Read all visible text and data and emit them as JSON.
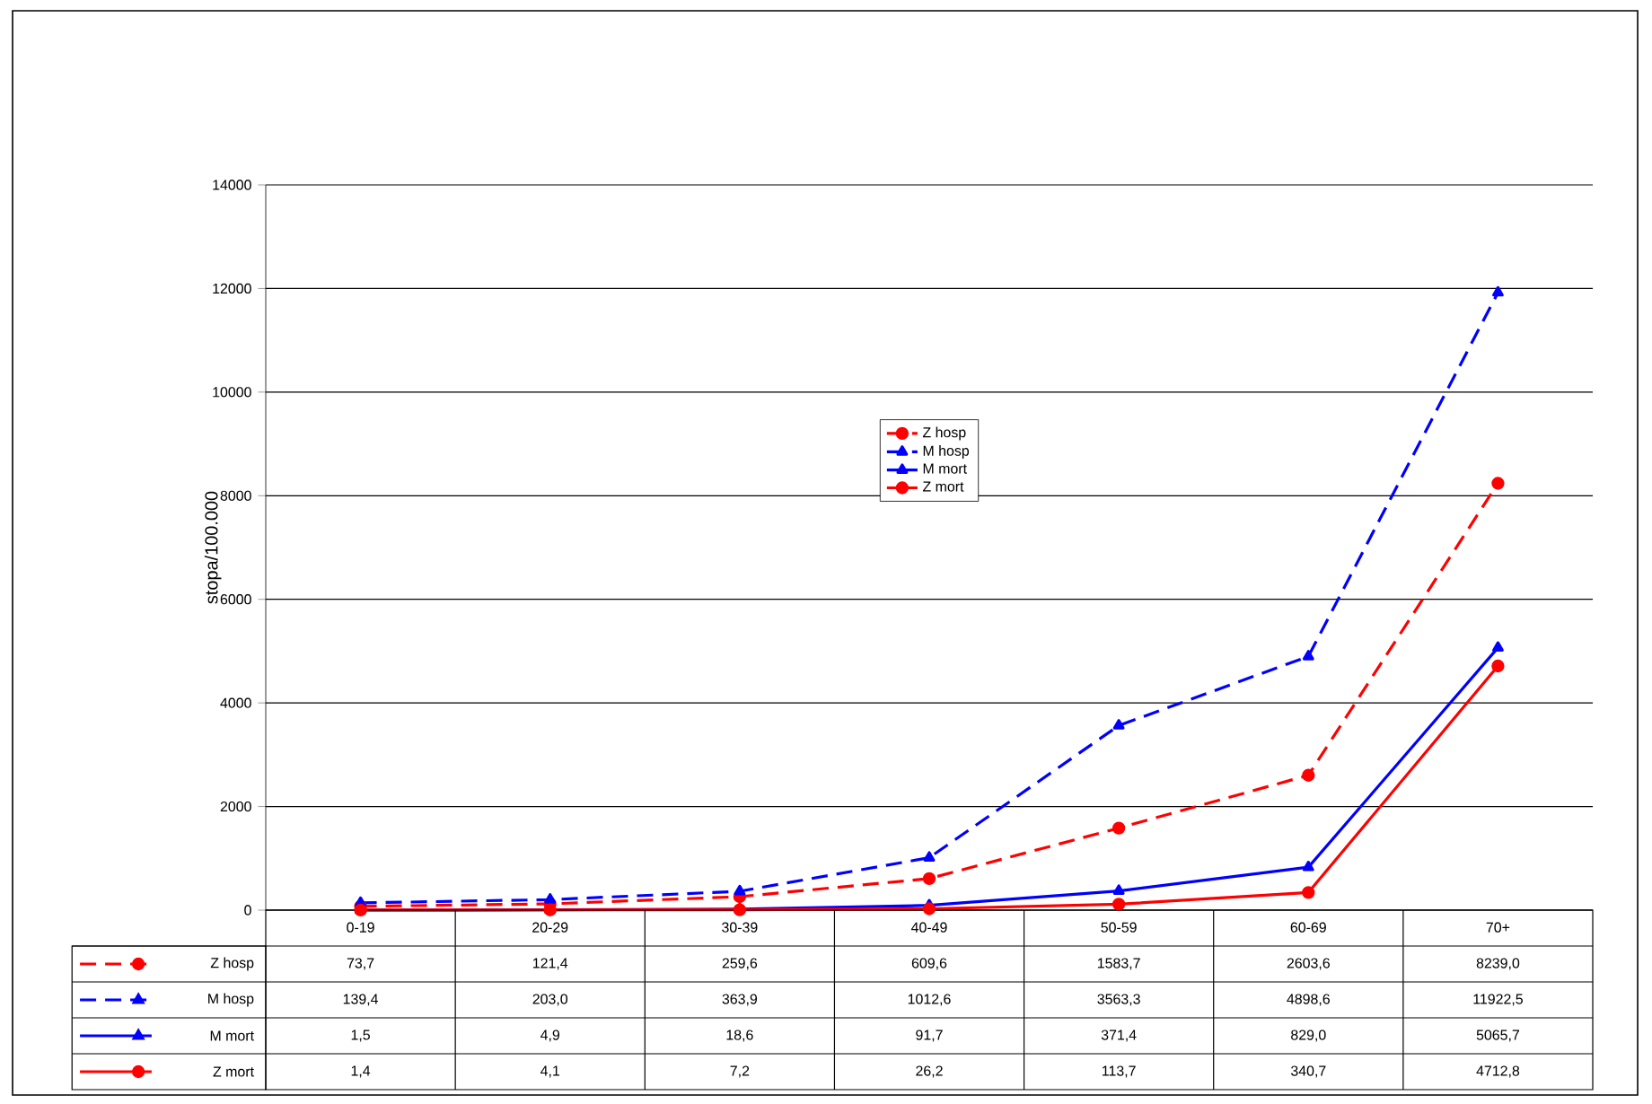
{
  "chart_data": {
    "type": "line",
    "ylabel": "stopa/100.000",
    "categories": [
      "0-19",
      "20-29",
      "30-39",
      "40-49",
      "50-59",
      "60-69",
      "70+"
    ],
    "series": [
      {
        "name": "Z hosp",
        "color": "#ff0000",
        "marker": "circle",
        "line_style": "dashed",
        "values": [
          73.7,
          121.4,
          259.6,
          609.6,
          1583.7,
          2603.6,
          8239.0
        ],
        "value_labels": [
          "73,7",
          "121,4",
          "259,6",
          "609,6",
          "1583,7",
          "2603,6",
          "8239,0"
        ]
      },
      {
        "name": "M hosp",
        "color": "#0000ff",
        "marker": "triangle",
        "line_style": "dashed",
        "values": [
          139.4,
          203.0,
          363.9,
          1012.6,
          3563.3,
          4898.6,
          11922.5
        ],
        "value_labels": [
          "139,4",
          "203,0",
          "363,9",
          "1012,6",
          "3563,3",
          "4898,6",
          "11922,5"
        ]
      },
      {
        "name": "M mort",
        "color": "#0000ff",
        "marker": "triangle",
        "line_style": "solid",
        "values": [
          1.5,
          4.9,
          18.6,
          91.7,
          371.4,
          829.0,
          5065.7
        ],
        "value_labels": [
          "1,5",
          "4,9",
          "18,6",
          "91,7",
          "371,4",
          "829,0",
          "5065,7"
        ]
      },
      {
        "name": "Z mort",
        "color": "#ff0000",
        "marker": "circle",
        "line_style": "solid",
        "values": [
          1.4,
          4.1,
          7.2,
          26.2,
          113.7,
          340.7,
          4712.8
        ],
        "value_labels": [
          "1,4",
          "4,1",
          "7,2",
          "26,2",
          "113,7",
          "340,7",
          "4712,8"
        ]
      }
    ],
    "ylim": [
      0,
      14000
    ],
    "yticks": [
      0,
      2000,
      4000,
      6000,
      8000,
      10000,
      12000,
      14000
    ],
    "grid": "y",
    "legend": "center"
  }
}
